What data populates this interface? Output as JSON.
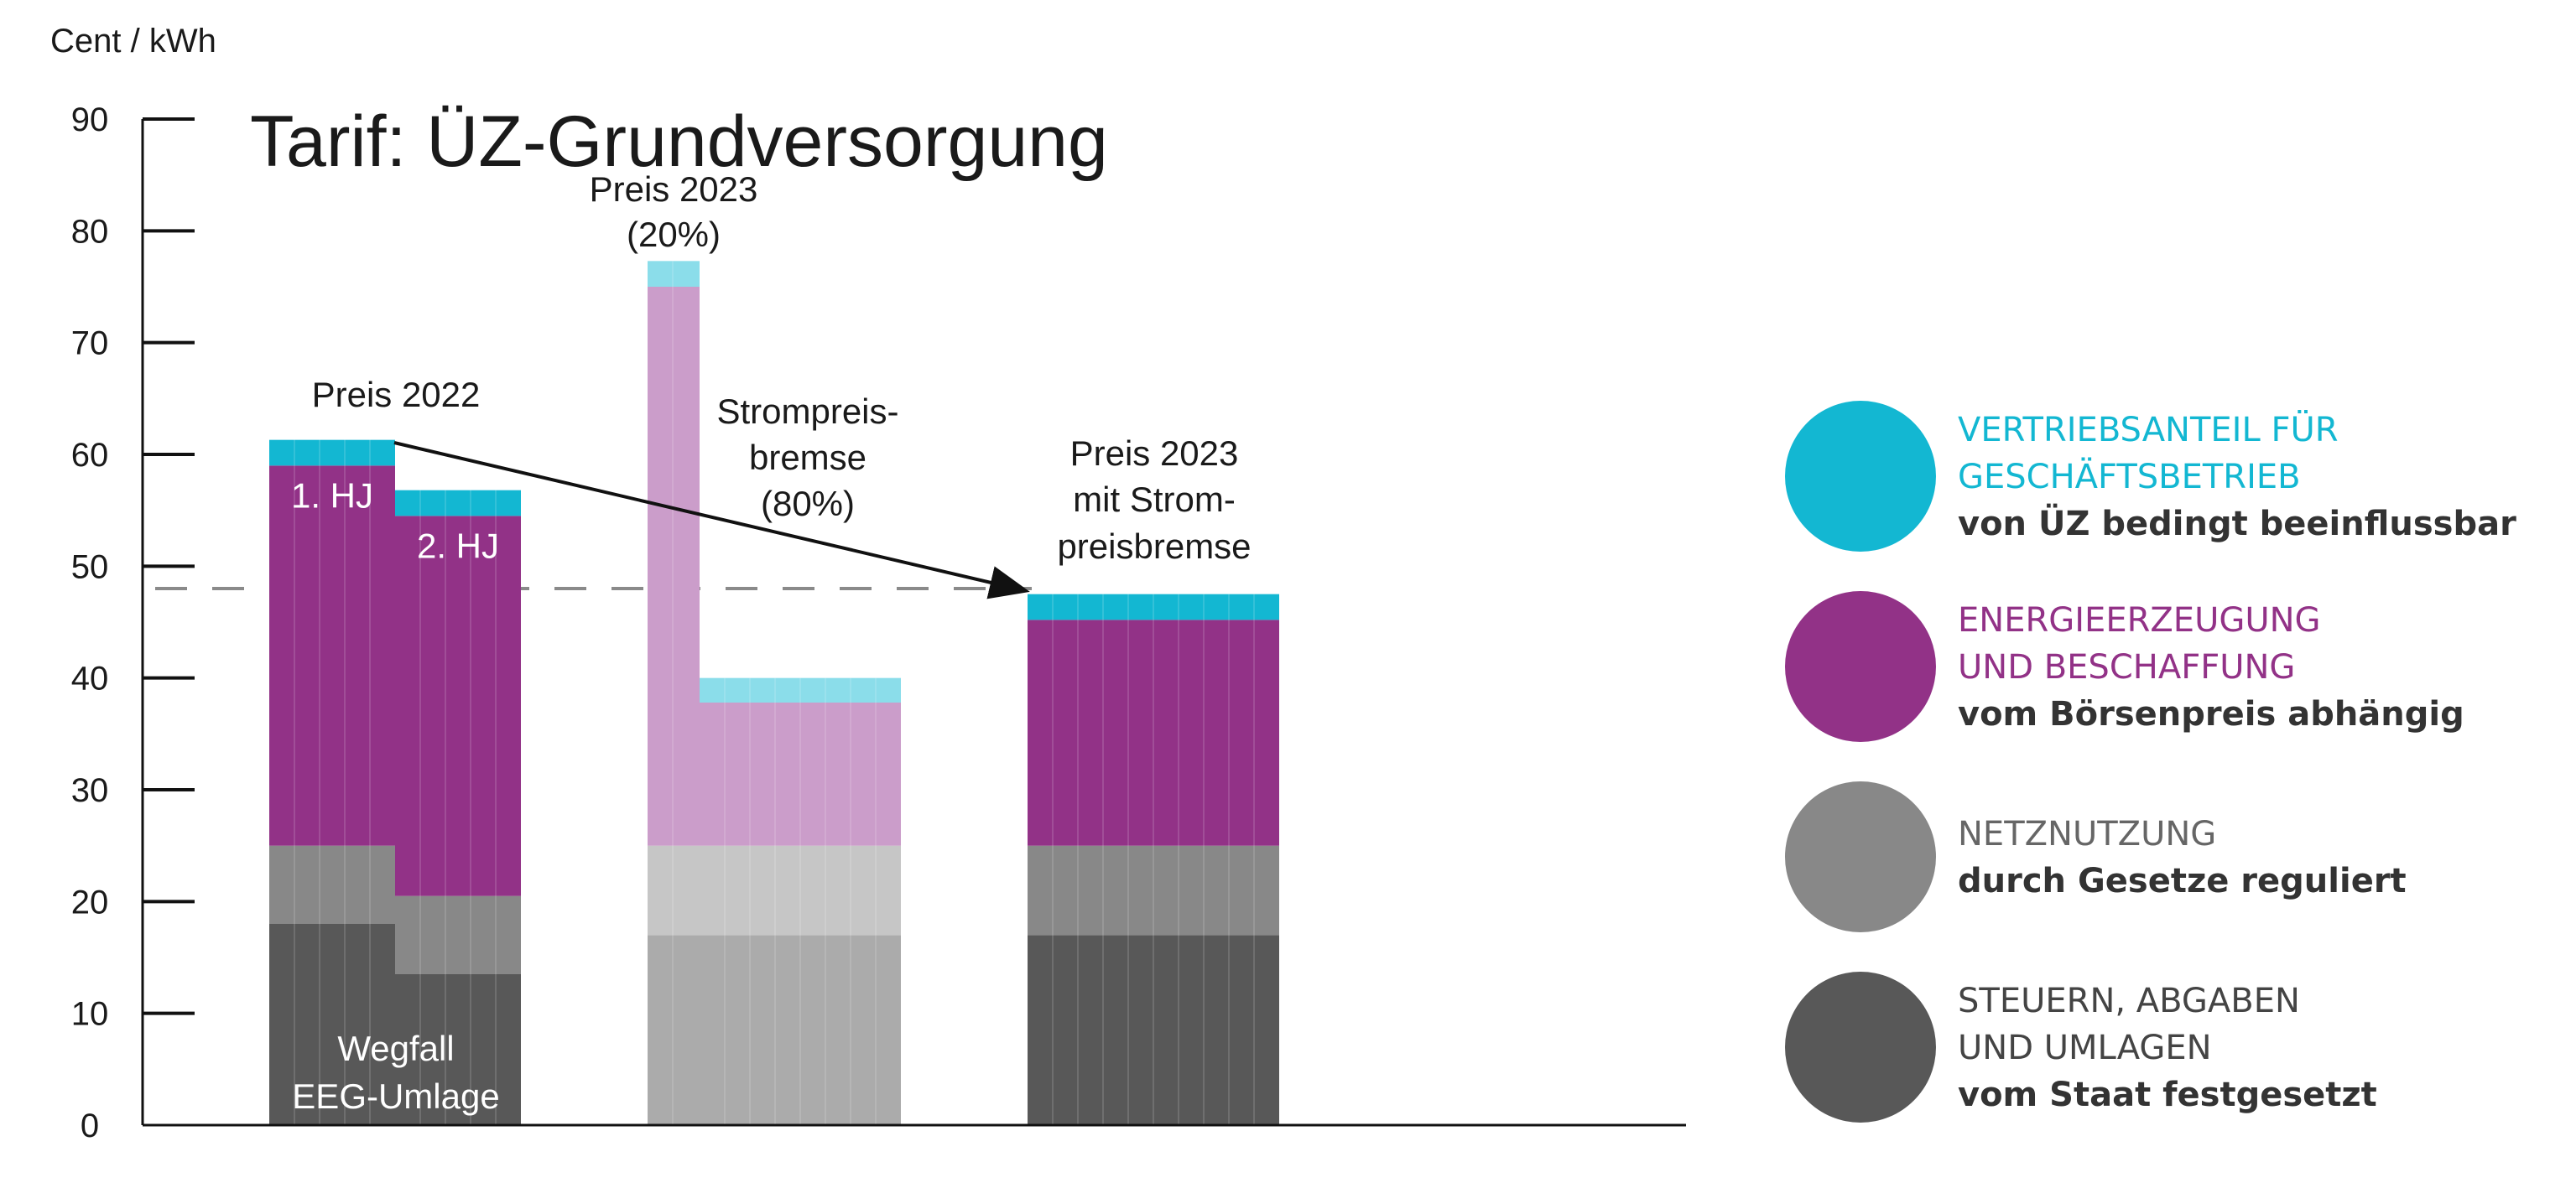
{
  "title": "Tarif: ÜZ-Grundversorgung",
  "unit_label": "Cent / kWh",
  "colors": {
    "vertrieb": "#13B7D2",
    "vertrieb_light": "#8BDDEA",
    "energie": "#923287",
    "energie_light": "#CB9DCA",
    "netz": "#888888",
    "netz_light": "#C6C6C6",
    "steuern": "#585858",
    "steuern_light": "#ABABAB"
  },
  "chart_data": {
    "type": "bar",
    "stacked": true,
    "ylim": [
      0,
      90
    ],
    "yticks": [
      0,
      10,
      20,
      30,
      40,
      50,
      60,
      70,
      80,
      90
    ],
    "reference_line": 48,
    "segment_order": [
      "steuern",
      "netz",
      "energie",
      "vertrieb"
    ],
    "bars": [
      {
        "id": "hj1",
        "label": "1. HJ",
        "segments": {
          "steuern": 18,
          "netz": 7,
          "energie": 34,
          "vertrieb": 2.3
        },
        "tone": "dark"
      },
      {
        "id": "hj2",
        "label": "2. HJ",
        "segments": {
          "steuern": 13.5,
          "netz": 7,
          "energie": 34,
          "vertrieb": 2.3
        },
        "tone": "dark"
      },
      {
        "id": "p2023",
        "label": "",
        "segments": {
          "steuern": 17,
          "netz": 8,
          "energie": 50,
          "vertrieb": 2.3
        },
        "tone": "light"
      },
      {
        "id": "bremse",
        "label": "",
        "segments": {
          "steuern": 17,
          "netz": 8,
          "energie": 12.8,
          "vertrieb": 2.2
        },
        "tone": "light"
      },
      {
        "id": "mit_bremse",
        "label": "",
        "segments": {
          "steuern": 17,
          "netz": 8,
          "energie": 20.2,
          "vertrieb": 2.3
        },
        "tone": "dark"
      }
    ],
    "annotations": {
      "preis_2022": "Preis 2022",
      "preis_2023_line1": "Preis 2023",
      "preis_2023_line2": "(20%)",
      "strompreis_line1": "Strompreis-",
      "strompreis_line2": "bremse",
      "strompreis_line3": "(80%)",
      "mit_line1": "Preis 2023",
      "mit_line2": "mit Strom-",
      "mit_line3": "preisbremse",
      "wegfall_line1": "Wegfall",
      "wegfall_line2": "EEG-Umlage"
    }
  },
  "legend": [
    {
      "key": "vertrieb",
      "title_lines": [
        "VERTRIEBSANTEIL FÜR",
        "GESCHÄFTSBETRIEB"
      ],
      "subtitle": "von ÜZ bedingt beeinflussbar",
      "title_color": "#13B7D2"
    },
    {
      "key": "energie",
      "title_lines": [
        "ENERGIEERZEUGUNG",
        "UND BESCHAFFUNG"
      ],
      "subtitle": "vom Börsenpreis  abhängig",
      "title_color": "#923287"
    },
    {
      "key": "netz",
      "title_lines": [
        "NETZNUTZUNG"
      ],
      "subtitle": "durch Gesetze reguliert",
      "title_color": "#666666"
    },
    {
      "key": "steuern",
      "title_lines": [
        "STEUERN, ABGABEN",
        "UND UMLAGEN"
      ],
      "subtitle": "vom Staat festgesetzt",
      "title_color": "#444444"
    }
  ]
}
